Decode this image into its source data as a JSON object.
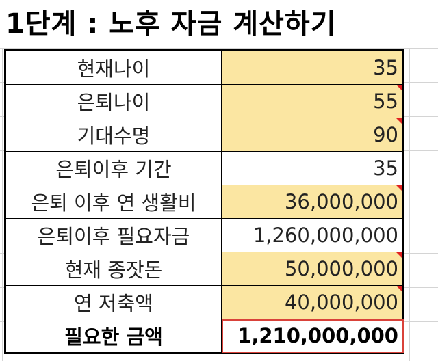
{
  "title": "1단계 : 노후 자금 계산하기",
  "colors": {
    "input_fill": "#fbe6a2",
    "comment_marker": "#e02020",
    "selection_border": "#d9423a"
  },
  "rows": [
    {
      "label": "현재나이",
      "value": "35"
    },
    {
      "label": "은퇴나이",
      "value": "55"
    },
    {
      "label": "기대수명",
      "value": "90"
    },
    {
      "label": "은퇴이후 기간",
      "value": "35"
    },
    {
      "label": "은퇴 이후 연 생활비",
      "value": "36,000,000"
    },
    {
      "label": "은퇴이후 필요자금",
      "value": "1,260,000,000"
    },
    {
      "label": "현재 종잣돈",
      "value": "50,000,000"
    },
    {
      "label": "연 저축액",
      "value": "40,000,000"
    },
    {
      "label": "필요한 금액",
      "value": "1,210,000,000"
    }
  ]
}
